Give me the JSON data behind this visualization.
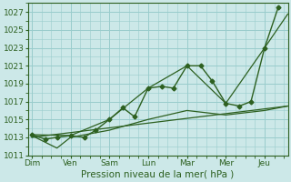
{
  "xlabel": "Pression niveau de la mer( hPa )",
  "background_color": "#cce8e8",
  "grid_color": "#99cccc",
  "line_color": "#2d6020",
  "ylim": [
    1011,
    1028
  ],
  "yticks": [
    1011,
    1013,
    1015,
    1017,
    1019,
    1021,
    1023,
    1025,
    1027
  ],
  "days": [
    "Dim",
    "Ven",
    "Sam",
    "Lun",
    "Mar",
    "Mer",
    "Jeu"
  ],
  "day_positions": [
    0,
    2,
    4,
    6,
    8,
    10,
    12
  ],
  "xlim": [
    -0.2,
    13.2
  ],
  "series": [
    {
      "x": [
        0,
        0.7,
        1.3,
        2,
        2.7,
        3.3,
        4,
        4.7,
        5.3,
        6,
        6.7,
        7.3,
        8,
        8.7,
        9.3,
        10,
        10.7,
        11.3,
        12,
        12.7
      ],
      "y": [
        1013.3,
        1012.8,
        1013.0,
        1013.2,
        1013.0,
        1013.8,
        1015.0,
        1016.3,
        1015.3,
        1018.5,
        1018.7,
        1018.5,
        1021.0,
        1021.0,
        1019.3,
        1016.8,
        1016.5,
        1017.0,
        1023.0,
        1027.5
      ],
      "marker": "D",
      "markersize": 2.5,
      "linewidth": 1.0
    },
    {
      "x": [
        0,
        2,
        4,
        6,
        8,
        10,
        12,
        13.2
      ],
      "y": [
        1013.3,
        1013.2,
        1015.0,
        1018.5,
        1021.0,
        1016.8,
        1023.0,
        1026.8
      ],
      "marker": null,
      "markersize": 0,
      "linewidth": 0.9
    },
    {
      "x": [
        0,
        13.2
      ],
      "y": [
        1013.0,
        1016.5
      ],
      "marker": null,
      "markersize": 0,
      "linewidth": 0.9
    },
    {
      "x": [
        0,
        1.3,
        2,
        4,
        6,
        8,
        10,
        12,
        13.2
      ],
      "y": [
        1013.2,
        1011.8,
        1013.0,
        1013.8,
        1015.0,
        1016.0,
        1015.5,
        1016.0,
        1016.5
      ],
      "marker": null,
      "markersize": 0,
      "linewidth": 0.9
    }
  ]
}
